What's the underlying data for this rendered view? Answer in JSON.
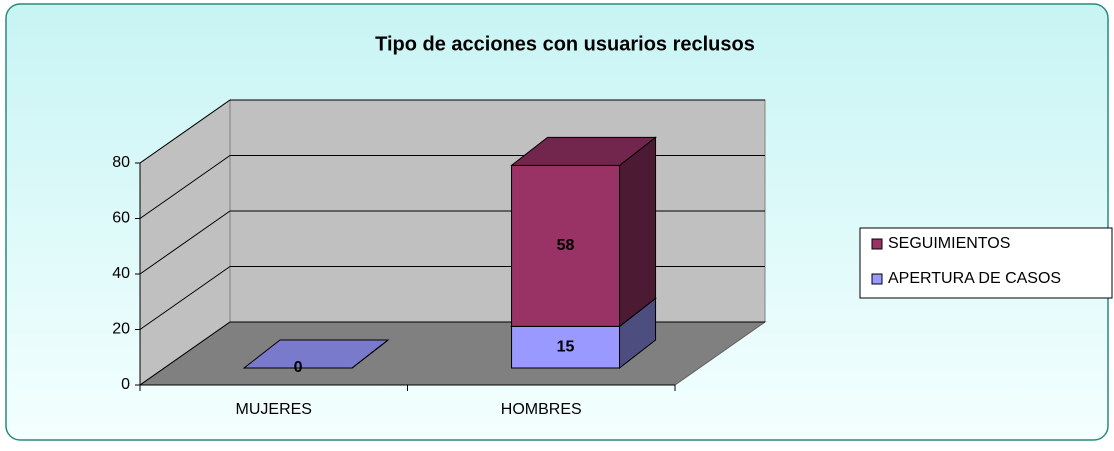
{
  "chart_data": {
    "type": "bar3d_stacked",
    "title": "Tipo de acciones con usuarios reclusos",
    "categories": [
      "MUJERES",
      "HOMBRES"
    ],
    "series": [
      {
        "name": "APERTURA DE CASOS",
        "color": "#9999ff",
        "values": [
          0,
          15
        ]
      },
      {
        "name": "SEGUIMIENTOS",
        "color": "#993366",
        "values": [
          0,
          58
        ]
      }
    ],
    "ylim": [
      0,
      80
    ],
    "yticks": [
      0,
      20,
      40,
      60,
      80
    ],
    "grid": true,
    "legend": "right"
  }
}
